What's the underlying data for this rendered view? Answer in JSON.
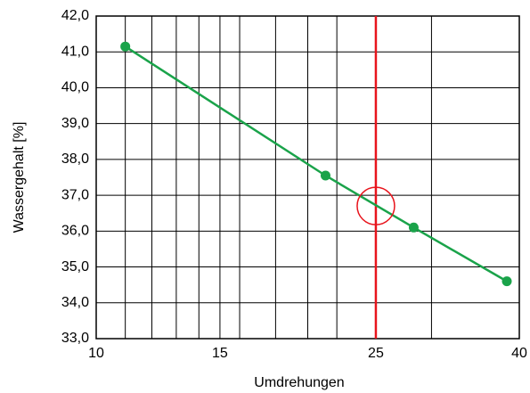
{
  "chart_data": {
    "type": "line",
    "xlabel": "Umdrehungen",
    "ylabel": "Wassergehalt [%]",
    "xscale": "log",
    "xlim": [
      10,
      40
    ],
    "ylim": [
      33,
      42
    ],
    "xticks": [
      10,
      15,
      25,
      40
    ],
    "xgrid": [
      11,
      12,
      13,
      14,
      15,
      16,
      18,
      20,
      22,
      25,
      30
    ],
    "yticks": [
      {
        "value": 33,
        "label": "33,0"
      },
      {
        "value": 34,
        "label": "34,0"
      },
      {
        "value": 35,
        "label": "35,0"
      },
      {
        "value": 36,
        "label": "36,0"
      },
      {
        "value": 37,
        "label": "37,0"
      },
      {
        "value": 38,
        "label": "38,0"
      },
      {
        "value": 39,
        "label": "39,0"
      },
      {
        "value": 40,
        "label": "40,0"
      },
      {
        "value": 41,
        "label": "41,0"
      },
      {
        "value": 42,
        "label": "42,0"
      }
    ],
    "grid": true,
    "series": [
      {
        "name": "Wassergehalt",
        "color": "#1aa34a",
        "x": [
          11,
          21.2,
          28.3,
          38.4
        ],
        "values": [
          41.15,
          37.55,
          36.1,
          34.6
        ]
      }
    ],
    "reference_x": {
      "value": 25,
      "color": "#e8141c"
    },
    "marker": {
      "x": 25,
      "y": 36.7,
      "color": "#e8141c"
    }
  }
}
